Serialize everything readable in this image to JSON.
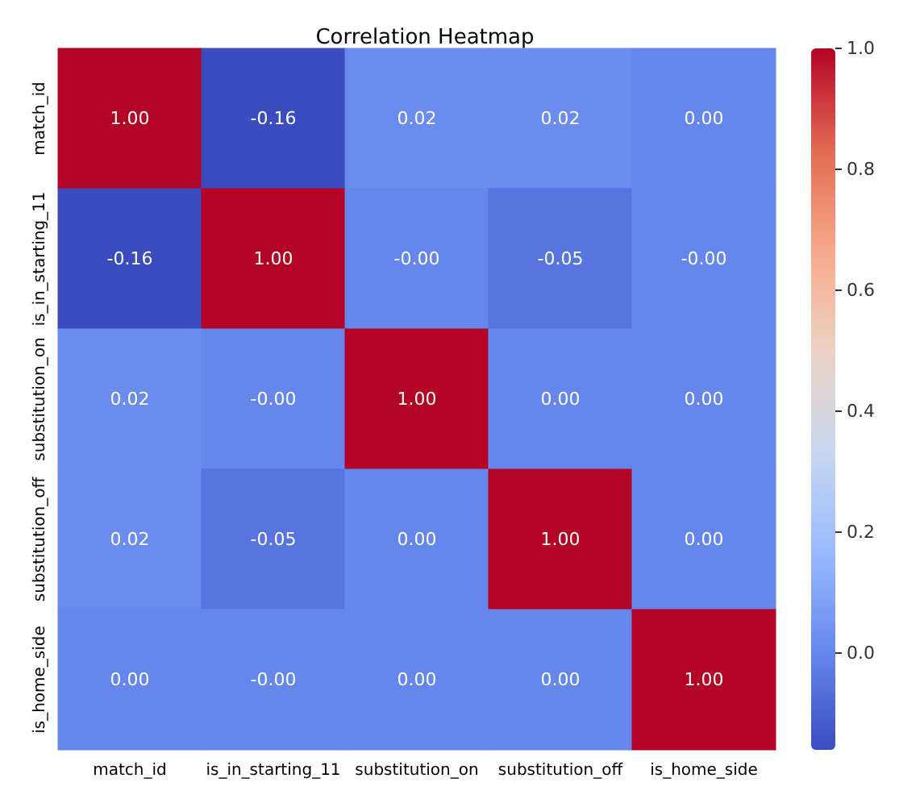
{
  "chart_data": {
    "type": "heatmap",
    "title": "Correlation Heatmap",
    "categories": [
      "match_id",
      "is_in_starting_11",
      "substitution_on",
      "substitution_off",
      "is_home_side"
    ],
    "y_categories": [
      "match_id",
      "is_in_starting_11",
      "substitution_on",
      "substitution_off",
      "is_home_side"
    ],
    "cells": [
      [
        1.0,
        -0.16,
        0.02,
        0.02,
        0.0
      ],
      [
        -0.16,
        1.0,
        0.0,
        -0.05,
        0.0
      ],
      [
        0.02,
        0.0,
        1.0,
        0.0,
        0.0
      ],
      [
        0.02,
        -0.05,
        0.0,
        1.0,
        0.0
      ],
      [
        0.0,
        0.0,
        0.0,
        0.0,
        1.0
      ]
    ],
    "cell_labels": [
      [
        "1.00",
        "-0.16",
        "0.02",
        "0.02",
        "0.00"
      ],
      [
        "-0.16",
        "1.00",
        "-0.00",
        "-0.05",
        "-0.00"
      ],
      [
        "0.02",
        "-0.00",
        "1.00",
        "0.00",
        "0.00"
      ],
      [
        "0.02",
        "-0.05",
        "0.00",
        "1.00",
        "0.00"
      ],
      [
        "0.00",
        "-0.00",
        "0.00",
        "0.00",
        "1.00"
      ]
    ],
    "clim": [
      -0.16,
      1.0
    ],
    "cticks": [
      {
        "value": 0.0,
        "label": "0.0"
      },
      {
        "value": 0.2,
        "label": "0.2"
      },
      {
        "value": 0.4,
        "label": "0.4"
      },
      {
        "value": 0.6,
        "label": "0.6"
      },
      {
        "value": 0.8,
        "label": "0.8"
      },
      {
        "value": 1.0,
        "label": "1.0"
      }
    ]
  }
}
